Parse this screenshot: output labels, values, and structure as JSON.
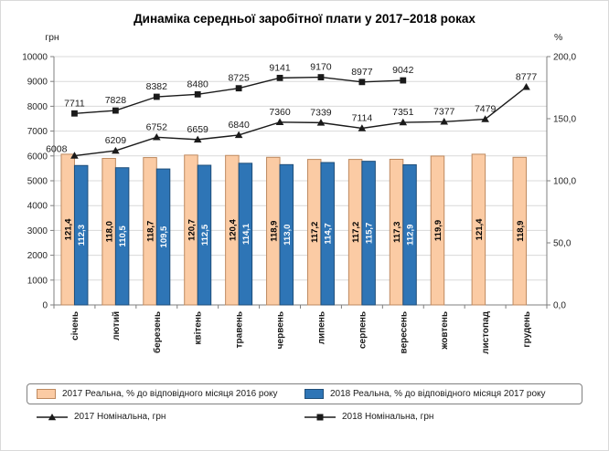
{
  "title": "Динаміка середньої заробітної плати у 2017–2018 роках",
  "chart_data": {
    "type": "bar",
    "combo": "clustered bars (right % axis) + lines with markers (left грн axis)",
    "grid": "horizontal",
    "legend_position": "bottom",
    "categories": [
      "січень",
      "лютий",
      "березень",
      "квітень",
      "травень",
      "червень",
      "липень",
      "серпень",
      "вересень",
      "жовтень",
      "листопад",
      "грудень"
    ],
    "left_axis": {
      "label": "грн",
      "min": 0,
      "max": 10000,
      "step": 1000
    },
    "right_axis": {
      "label": "%",
      "min": 0,
      "max": 200,
      "step": 50,
      "tick_labels": [
        "0,0",
        "50,0",
        "100,0",
        "150,0",
        "200,0"
      ]
    },
    "bar_series": [
      {
        "name": "2017 Реальна, % до відповідного місяця 2016 року",
        "axis": "right",
        "color": "#FBCBA4",
        "border": "#BE8A60",
        "label_color": "#000000",
        "values": [
          121.4,
          118.0,
          118.7,
          120.7,
          120.4,
          118.9,
          117.2,
          117.2,
          117.3,
          119.9,
          121.4,
          118.9
        ],
        "labels": [
          "121,4",
          "118,0",
          "118,7",
          "120,7",
          "120,4",
          "118,9",
          "117,2",
          "117,2",
          "117,3",
          "119,9",
          "121,4",
          "118,9"
        ]
      },
      {
        "name": "2018 Реальна, % до відповідного місяця 2017 року",
        "axis": "right",
        "color": "#2E75B6",
        "border": "#1F4E79",
        "label_color": "#FFFFFF",
        "values": [
          112.3,
          110.5,
          109.5,
          112.5,
          114.1,
          113.0,
          114.7,
          115.7,
          112.9
        ],
        "labels": [
          "112,3",
          "110,5",
          "109,5",
          "112,5",
          "114,1",
          "113,0",
          "114,7",
          "115,7",
          "112,9"
        ]
      }
    ],
    "line_series": [
      {
        "name": "2017 Номінальна, грн",
        "axis": "left",
        "marker": "triangle",
        "color": "#1A1A1A",
        "values": [
          6008,
          6209,
          6752,
          6659,
          6840,
          7360,
          7339,
          7114,
          7351,
          7377,
          7479,
          8777
        ]
      },
      {
        "name": "2018 Номінальна, грн",
        "axis": "left",
        "marker": "square",
        "color": "#1A1A1A",
        "values": [
          7711,
          7828,
          8382,
          8480,
          8725,
          9141,
          9170,
          8977,
          9042
        ]
      }
    ]
  }
}
